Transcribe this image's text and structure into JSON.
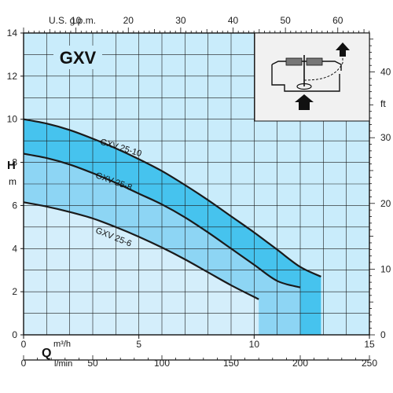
{
  "chart_data": {
    "type": "area",
    "title": "GXV",
    "left_axis": {
      "label": "H",
      "unit": "m",
      "range": [
        0,
        14
      ],
      "ticks": [
        0,
        2,
        4,
        6,
        8,
        10,
        12,
        14
      ]
    },
    "right_axis": {
      "label": "ft",
      "range_ft": [
        0,
        45.93
      ],
      "ticks": [
        0,
        10,
        20,
        30,
        40
      ]
    },
    "bottom_axis_primary": {
      "label": "Q",
      "unit": "m³/h",
      "range": [
        0,
        15
      ],
      "ticks": [
        0,
        5,
        10,
        15
      ]
    },
    "bottom_axis_secondary": {
      "unit": "l/min",
      "range": [
        0,
        250
      ],
      "ticks": [
        0,
        50,
        100,
        150,
        200,
        250
      ]
    },
    "top_axis": {
      "label": "U.S. g.p.m.",
      "range": [
        0,
        66.04
      ],
      "ticks": [
        10,
        20,
        30,
        40,
        50,
        60
      ]
    },
    "grid": true,
    "series": [
      {
        "name": "GXV 25-10",
        "x": [
          0,
          1,
          2,
          3,
          4,
          5,
          6,
          7,
          8,
          9,
          10,
          11,
          12,
          12.9
        ],
        "y": [
          10.0,
          9.8,
          9.5,
          9.1,
          8.65,
          8.15,
          7.6,
          6.95,
          6.25,
          5.5,
          4.75,
          3.95,
          3.15,
          2.7
        ]
      },
      {
        "name": "GXV 25-8",
        "x": [
          0,
          1,
          2,
          3,
          4,
          5,
          6,
          7,
          8,
          9,
          10,
          11,
          12.0
        ],
        "y": [
          8.4,
          8.2,
          7.9,
          7.5,
          7.05,
          6.55,
          6.05,
          5.45,
          4.75,
          4.0,
          3.25,
          2.5,
          2.2
        ]
      },
      {
        "name": "GXV 25-6",
        "x": [
          0,
          1,
          2,
          3,
          4,
          5,
          6,
          7,
          8,
          9,
          10.2
        ],
        "y": [
          6.15,
          5.95,
          5.7,
          5.4,
          5.0,
          4.55,
          4.05,
          3.5,
          2.9,
          2.3,
          1.65
        ]
      }
    ],
    "colors": {
      "band_top": "#46c3ee",
      "band_mid": "#8dd5f4",
      "band_low": "#d4eefb",
      "grid_bg": "#c9ecfb",
      "grid_line": "#1b1b1b",
      "curve": "#1a1a1a"
    },
    "inset": {
      "description_icon": "pump-cross-section-icon"
    }
  }
}
